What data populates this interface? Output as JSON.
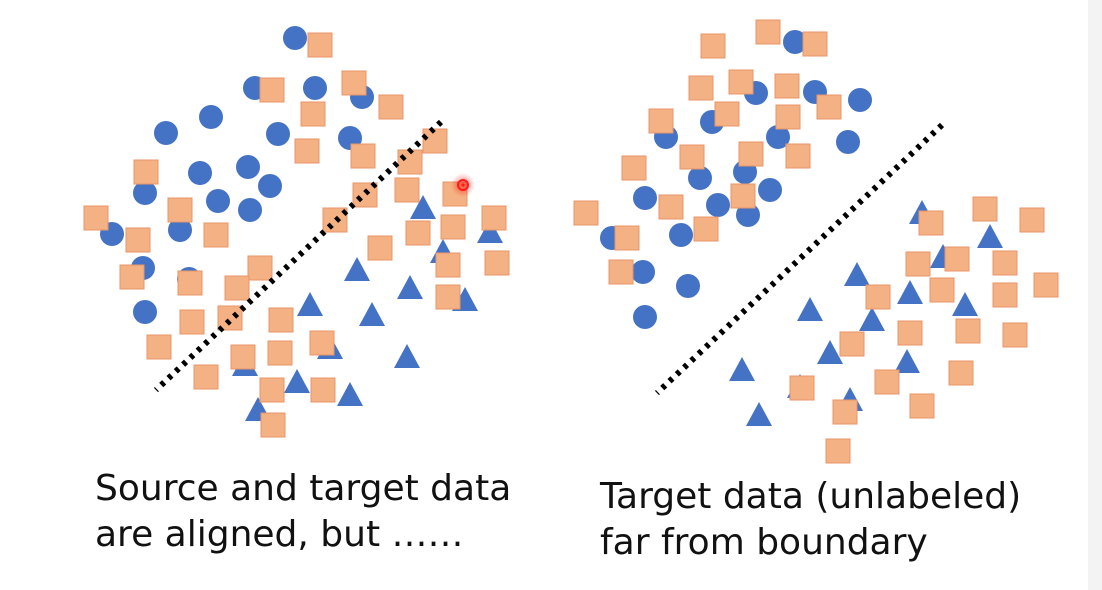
{
  "colors": {
    "circle": "#4472c4",
    "triangle": "#4472c4",
    "square_fill": "#f4b183",
    "square_stroke": "#e8956a",
    "boundary": "#000000",
    "pointer": "#ff0000"
  },
  "icons": {
    "pointer": "laser-pointer-icon"
  },
  "panels": [
    {
      "name": "left",
      "caption": [
        "Source and target data",
        "are aligned, but ……"
      ],
      "circles": [
        [
          295,
          38
        ],
        [
          255,
          88
        ],
        [
          315,
          88
        ],
        [
          362,
          97
        ],
        [
          166,
          133
        ],
        [
          211,
          117
        ],
        [
          278,
          134
        ],
        [
          350,
          138
        ],
        [
          200,
          173
        ],
        [
          248,
          167
        ],
        [
          270,
          186
        ],
        [
          145,
          193
        ],
        [
          218,
          201
        ],
        [
          250,
          210
        ],
        [
          112,
          234
        ],
        [
          180,
          230
        ],
        [
          143,
          268
        ],
        [
          189,
          279
        ],
        [
          145,
          312
        ]
      ],
      "triangles": [
        [
          423,
          208
        ],
        [
          490,
          232
        ],
        [
          443,
          252
        ],
        [
          357,
          270
        ],
        [
          410,
          288
        ],
        [
          465,
          300
        ],
        [
          310,
          305
        ],
        [
          372,
          315
        ],
        [
          330,
          348
        ],
        [
          407,
          357
        ],
        [
          245,
          365
        ],
        [
          297,
          382
        ],
        [
          350,
          395
        ],
        [
          258,
          410
        ]
      ],
      "squares": [
        [
          320,
          45
        ],
        [
          354,
          83
        ],
        [
          391,
          107
        ],
        [
          272,
          90
        ],
        [
          313,
          114
        ],
        [
          307,
          151
        ],
        [
          363,
          156
        ],
        [
          410,
          162
        ],
        [
          435,
          141
        ],
        [
          146,
          172
        ],
        [
          407,
          190
        ],
        [
          365,
          195
        ],
        [
          455,
          194
        ],
        [
          180,
          210
        ],
        [
          335,
          220
        ],
        [
          494,
          218
        ],
        [
          96,
          218
        ],
        [
          216,
          235
        ],
        [
          138,
          240
        ],
        [
          418,
          233
        ],
        [
          453,
          227
        ],
        [
          380,
          248
        ],
        [
          260,
          268
        ],
        [
          448,
          265
        ],
        [
          497,
          263
        ],
        [
          132,
          277
        ],
        [
          190,
          283
        ],
        [
          237,
          288
        ],
        [
          448,
          297
        ],
        [
          281,
          320
        ],
        [
          230,
          318
        ],
        [
          192,
          322
        ],
        [
          322,
          343
        ],
        [
          159,
          347
        ],
        [
          280,
          353
        ],
        [
          243,
          357
        ],
        [
          206,
          377
        ],
        [
          272,
          390
        ],
        [
          323,
          390
        ],
        [
          273,
          425
        ]
      ],
      "line": [
        [
          441,
          122
        ],
        [
          156,
          390
        ]
      ]
    },
    {
      "name": "right",
      "caption": [
        "Target data (unlabeled)",
        "far from boundary"
      ],
      "circles": [
        [
          795,
          42
        ],
        [
          756,
          93
        ],
        [
          815,
          92
        ],
        [
          860,
          100
        ],
        [
          666,
          137
        ],
        [
          712,
          122
        ],
        [
          778,
          137
        ],
        [
          848,
          142
        ],
        [
          700,
          178
        ],
        [
          745,
          172
        ],
        [
          770,
          190
        ],
        [
          645,
          198
        ],
        [
          718,
          205
        ],
        [
          748,
          215
        ],
        [
          612,
          238
        ],
        [
          681,
          235
        ],
        [
          643,
          272
        ],
        [
          688,
          286
        ],
        [
          645,
          317
        ]
      ],
      "triangles": [
        [
          922,
          213
        ],
        [
          990,
          237
        ],
        [
          943,
          257
        ],
        [
          857,
          275
        ],
        [
          910,
          293
        ],
        [
          965,
          305
        ],
        [
          810,
          310
        ],
        [
          872,
          320
        ],
        [
          830,
          353
        ],
        [
          907,
          362
        ],
        [
          742,
          370
        ],
        [
          800,
          387
        ],
        [
          850,
          400
        ],
        [
          759,
          415
        ]
      ],
      "squares": [
        [
          768,
          32
        ],
        [
          815,
          44
        ],
        [
          713,
          46
        ],
        [
          741,
          82
        ],
        [
          787,
          86
        ],
        [
          701,
          88
        ],
        [
          727,
          114
        ],
        [
          788,
          117
        ],
        [
          829,
          107
        ],
        [
          661,
          121
        ],
        [
          692,
          157
        ],
        [
          751,
          154
        ],
        [
          798,
          156
        ],
        [
          634,
          168
        ],
        [
          743,
          196
        ],
        [
          671,
          207
        ],
        [
          586,
          213
        ],
        [
          706,
          229
        ],
        [
          627,
          238
        ],
        [
          931,
          223
        ],
        [
          985,
          209
        ],
        [
          1032,
          220
        ],
        [
          918,
          264
        ],
        [
          957,
          259
        ],
        [
          1005,
          263
        ],
        [
          621,
          272
        ],
        [
          942,
          290
        ],
        [
          1046,
          285
        ],
        [
          1005,
          295
        ],
        [
          878,
          297
        ],
        [
          910,
          333
        ],
        [
          968,
          331
        ],
        [
          1015,
          335
        ],
        [
          852,
          344
        ],
        [
          961,
          373
        ],
        [
          887,
          382
        ],
        [
          802,
          388
        ],
        [
          922,
          406
        ],
        [
          845,
          412
        ],
        [
          838,
          451
        ]
      ],
      "line": [
        [
          942,
          125
        ],
        [
          657,
          393
        ]
      ]
    }
  ]
}
